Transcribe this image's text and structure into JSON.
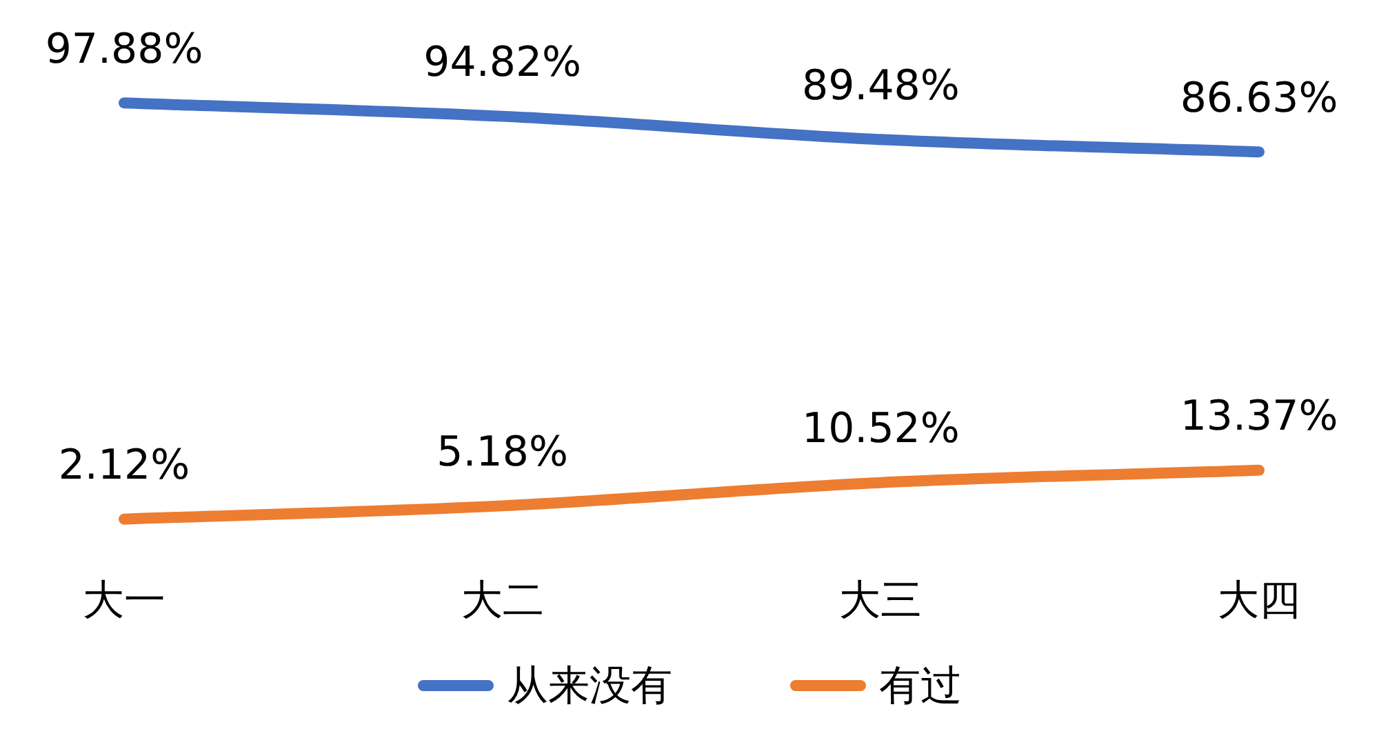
{
  "chart_data": {
    "type": "line",
    "categories": [
      "大一",
      "大二",
      "大三",
      "大四"
    ],
    "series": [
      {
        "name": "从来没有",
        "color": "#4472c4",
        "values": [
          97.88,
          94.82,
          89.48,
          86.63
        ],
        "value_labels": [
          "97.88%",
          "94.82%",
          "89.48%",
          "86.63%"
        ]
      },
      {
        "name": "有过",
        "color": "#ed7d31",
        "values": [
          2.12,
          5.18,
          10.52,
          13.37
        ],
        "value_labels": [
          "2.12%",
          "5.18%",
          "10.52%",
          "13.37%"
        ]
      }
    ],
    "legend": "bottom",
    "marker": "none",
    "line_style": "solid",
    "tick_labels": "x"
  }
}
